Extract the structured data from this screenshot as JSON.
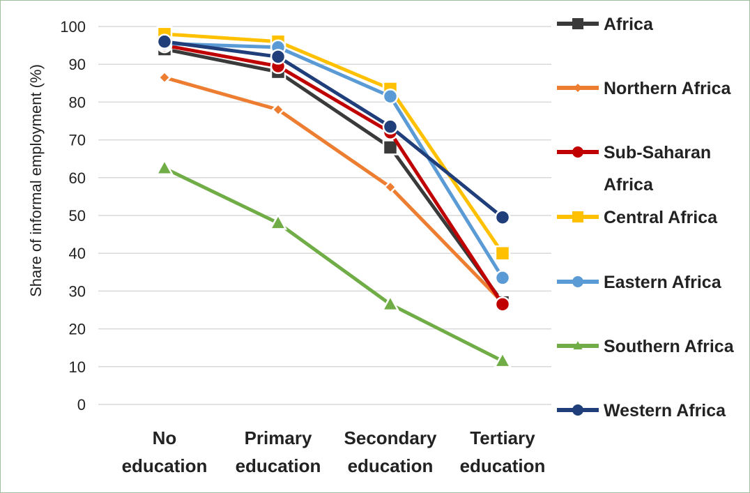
{
  "chart_data": {
    "type": "line",
    "categories": [
      [
        "No",
        "education"
      ],
      [
        "Primary",
        "education"
      ],
      [
        "Secondary",
        "education"
      ],
      [
        "Tertiary",
        "education"
      ]
    ],
    "ylabel": "Share of informal employment (%)",
    "xlabel": "",
    "ylim": [
      0,
      100
    ],
    "yticks": [
      0,
      10,
      20,
      30,
      40,
      50,
      60,
      70,
      80,
      90,
      100
    ],
    "grid": true,
    "legend_position": "right",
    "series": [
      {
        "name": "Africa",
        "label_lines": [
          "Africa"
        ],
        "color": "#3a3a3a",
        "marker": "square",
        "values": [
          94,
          88,
          68,
          27
        ]
      },
      {
        "name": "Northern Africa",
        "label_lines": [
          "Northern Africa"
        ],
        "color": "#ed7d31",
        "marker": "diamond",
        "values": [
          86.5,
          78,
          57.5,
          27
        ]
      },
      {
        "name": "Sub-Saharan Africa",
        "label_lines": [
          "Sub-Saharan",
          "Africa"
        ],
        "color": "#c00000",
        "marker": "circle",
        "values": [
          95,
          89.5,
          72,
          26.5
        ]
      },
      {
        "name": "Central Africa",
        "label_lines": [
          "Central Africa"
        ],
        "color": "#ffc000",
        "marker": "square",
        "values": [
          98,
          96,
          83.5,
          40
        ]
      },
      {
        "name": "Eastern Africa",
        "label_lines": [
          "Eastern Africa"
        ],
        "color": "#5b9bd5",
        "marker": "circle",
        "values": [
          95.5,
          94.5,
          81.5,
          33.5
        ]
      },
      {
        "name": "Southern Africa",
        "label_lines": [
          "Southern Africa"
        ],
        "color": "#70ad47",
        "marker": "triangle",
        "values": [
          62.5,
          48,
          26.5,
          11.5
        ]
      },
      {
        "name": "Western Africa",
        "label_lines": [
          "Western Africa"
        ],
        "color": "#1f3e7a",
        "marker": "circle",
        "values": [
          96,
          92,
          73.5,
          49.5
        ]
      }
    ]
  }
}
